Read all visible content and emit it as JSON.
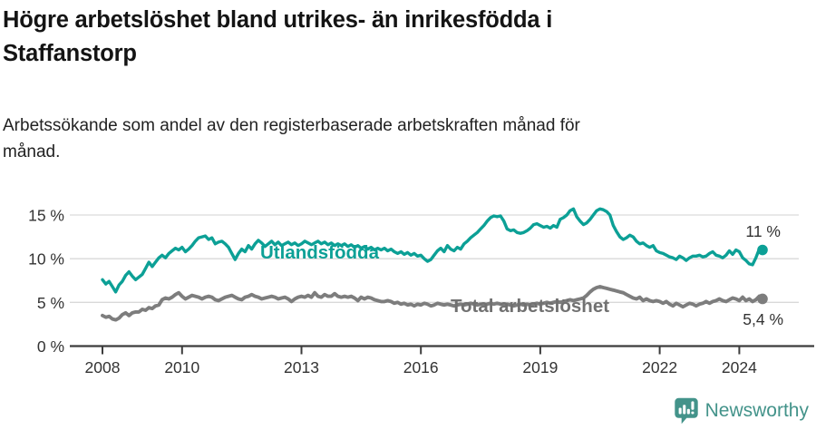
{
  "header": {
    "title": "Högre arbetslöshet bland utrikes- än inrikesfödda i\nStaffanstorp",
    "subtitle": "Arbetssökande som andel av den registerbaserade arbetskraften månad för\nmånad."
  },
  "footer": {
    "brand": "Newsworthy",
    "logo_icon": "newsworthy-speech-bubble-bar-chart-icon"
  },
  "colors": {
    "foreign_born_line": "#0ca096",
    "total_line": "#7d7d7d",
    "total_label": "#717171",
    "grid": "#d9d9d9",
    "axis": "#3c3c3c",
    "axis_text": "#333333",
    "brand_teal": "#43938a",
    "background": "#ffffff"
  },
  "chart_data": {
    "type": "line",
    "title": "Högre arbetslöshet bland utrikes- än inrikesfödda i Staffanstorp",
    "subtitle": "Arbetssökande som andel av den registerbaserade arbetskraften månad för månad.",
    "x_unit": "month",
    "x_start_year": 2008,
    "x_end": "2024-08",
    "x_range": [
      2008,
      2024.67
    ],
    "ylim": [
      0,
      16.5
    ],
    "grid": "horizontal",
    "legend_position": "inline-labels",
    "x_ticks": [
      {
        "year": 2008,
        "label": "2008"
      },
      {
        "year": 2010,
        "label": "2010"
      },
      {
        "year": 2013,
        "label": "2013"
      },
      {
        "year": 2016,
        "label": "2016"
      },
      {
        "year": 2019,
        "label": "2019"
      },
      {
        "year": 2022,
        "label": "2022"
      },
      {
        "year": 2024,
        "label": "2024"
      }
    ],
    "y_ticks": [
      {
        "value": 0,
        "label": "0 %"
      },
      {
        "value": 5,
        "label": "5 %"
      },
      {
        "value": 10,
        "label": "10 %"
      },
      {
        "value": 15,
        "label": "15 %"
      }
    ],
    "series": [
      {
        "name": "Utlandsfödda",
        "color_key": "foreign_born_line",
        "label_color_key": "foreign_born_line",
        "end_label": "11 %",
        "values": [
          7.6,
          7.1,
          7.4,
          6.8,
          6.2,
          7.0,
          7.4,
          8.1,
          8.5,
          8.0,
          7.6,
          7.9,
          8.2,
          8.9,
          9.6,
          9.1,
          9.6,
          10.1,
          10.4,
          10.1,
          10.6,
          10.9,
          11.2,
          11.0,
          11.3,
          10.8,
          11.1,
          11.5,
          12.0,
          12.4,
          12.5,
          12.6,
          12.2,
          12.4,
          11.7,
          11.9,
          12.0,
          11.7,
          11.3,
          10.6,
          9.9,
          10.6,
          11.1,
          10.8,
          11.5,
          11.1,
          11.7,
          12.1,
          11.8,
          11.4,
          11.7,
          12.0,
          11.6,
          11.9,
          11.5,
          11.7,
          11.9,
          11.6,
          11.8,
          11.5,
          11.7,
          12.0,
          11.8,
          11.6,
          11.8,
          12.0,
          11.7,
          11.9,
          11.6,
          11.8,
          11.5,
          11.7,
          11.5,
          11.7,
          11.4,
          11.6,
          11.3,
          11.5,
          11.2,
          11.4,
          11.1,
          11.3,
          11.0,
          11.2,
          11.0,
          11.2,
          10.9,
          11.1,
          10.8,
          10.6,
          10.8,
          10.5,
          10.7,
          10.4,
          10.6,
          10.3,
          10.4,
          10.0,
          9.7,
          9.9,
          10.4,
          10.9,
          11.2,
          10.8,
          11.5,
          11.1,
          10.9,
          11.3,
          11.1,
          11.7,
          12.0,
          12.4,
          12.7,
          13.0,
          13.4,
          13.8,
          14.3,
          14.7,
          14.9,
          14.8,
          14.9,
          14.3,
          13.4,
          13.2,
          13.3,
          13.0,
          12.9,
          13.0,
          13.2,
          13.5,
          13.9,
          14.0,
          13.8,
          13.6,
          13.7,
          13.5,
          13.8,
          13.6,
          14.5,
          14.7,
          15.0,
          15.5,
          15.7,
          14.8,
          14.3,
          13.9,
          14.1,
          14.5,
          15.0,
          15.5,
          15.7,
          15.6,
          15.4,
          15.0,
          13.8,
          13.1,
          12.5,
          12.2,
          12.4,
          12.7,
          12.5,
          12.0,
          11.7,
          11.8,
          11.5,
          11.3,
          11.5,
          10.9,
          10.7,
          10.6,
          10.4,
          10.2,
          10.1,
          9.9,
          10.3,
          10.1,
          9.8,
          10.1,
          10.3,
          10.3,
          10.4,
          10.2,
          10.3,
          10.6,
          10.8,
          10.4,
          10.3,
          10.1,
          10.4,
          10.9,
          10.5,
          11.0,
          10.8,
          10.1,
          9.8,
          9.4,
          9.3,
          10.1,
          11.1,
          11.0
        ]
      },
      {
        "name": "Total arbetslöshet",
        "color_key": "total_line",
        "label_color_key": "total_label",
        "end_label": "5,4 %",
        "values": [
          3.5,
          3.3,
          3.4,
          3.1,
          3.0,
          3.2,
          3.6,
          3.8,
          3.5,
          3.8,
          3.9,
          3.9,
          4.2,
          4.1,
          4.4,
          4.3,
          4.6,
          4.7,
          5.3,
          5.5,
          5.4,
          5.6,
          5.9,
          6.1,
          5.7,
          5.4,
          5.6,
          5.8,
          5.7,
          5.6,
          5.4,
          5.6,
          5.7,
          5.6,
          5.3,
          5.2,
          5.4,
          5.6,
          5.7,
          5.8,
          5.6,
          5.4,
          5.3,
          5.6,
          5.7,
          5.9,
          5.7,
          5.6,
          5.4,
          5.5,
          5.6,
          5.7,
          5.6,
          5.4,
          5.5,
          5.6,
          5.4,
          5.1,
          5.4,
          5.6,
          5.7,
          5.6,
          5.8,
          5.6,
          6.1,
          5.7,
          5.6,
          5.9,
          5.7,
          5.7,
          6.0,
          5.7,
          5.6,
          5.7,
          5.6,
          5.7,
          5.5,
          5.2,
          5.6,
          5.4,
          5.6,
          5.5,
          5.3,
          5.2,
          5.1,
          5.1,
          5.2,
          5.1,
          4.9,
          5.0,
          4.8,
          4.9,
          4.7,
          4.8,
          4.6,
          4.8,
          4.7,
          4.9,
          4.8,
          4.6,
          4.7,
          4.9,
          4.8,
          4.7,
          4.8,
          4.7,
          4.6,
          4.7,
          4.8,
          4.7,
          4.8,
          4.9,
          4.8,
          4.7,
          4.8,
          4.7,
          4.8,
          4.9,
          4.8,
          4.9,
          4.8,
          4.7,
          4.8,
          4.7,
          4.6,
          4.7,
          4.8,
          4.7,
          4.8,
          4.7,
          4.8,
          4.9,
          4.8,
          4.9,
          5.0,
          4.9,
          5.0,
          5.1,
          5.0,
          5.1,
          5.2,
          5.3,
          5.2,
          5.3,
          5.4,
          5.5,
          5.8,
          6.2,
          6.5,
          6.7,
          6.8,
          6.7,
          6.6,
          6.5,
          6.4,
          6.3,
          6.2,
          6.1,
          5.9,
          5.7,
          5.5,
          5.4,
          5.6,
          5.2,
          5.4,
          5.2,
          5.1,
          5.2,
          5.1,
          4.9,
          5.1,
          4.8,
          4.6,
          4.9,
          4.7,
          4.5,
          4.7,
          4.9,
          4.8,
          4.6,
          4.8,
          4.9,
          5.1,
          4.9,
          5.1,
          5.2,
          5.4,
          5.2,
          5.1,
          5.3,
          5.5,
          5.4,
          5.2,
          5.6,
          5.2,
          5.4,
          5.1,
          5.3,
          5.7,
          5.4
        ]
      }
    ]
  }
}
